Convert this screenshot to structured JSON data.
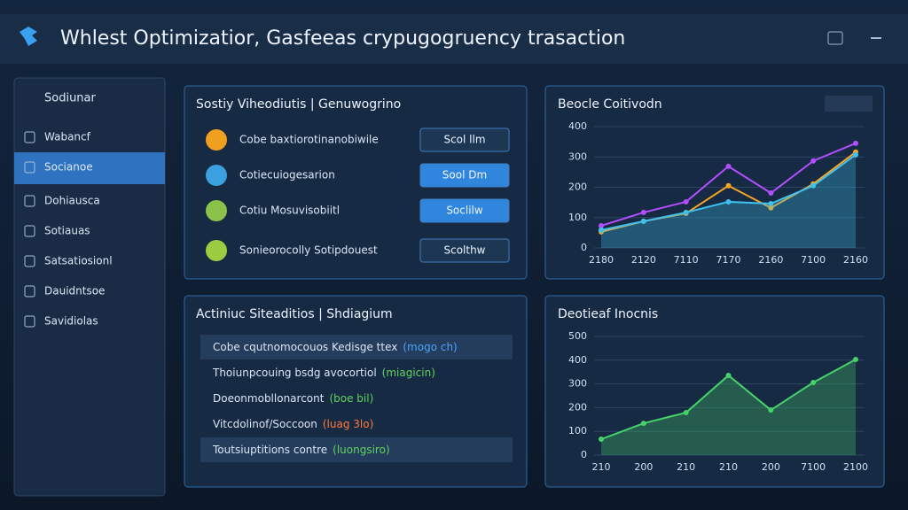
{
  "header": {
    "title": "Whlest Optimizatior, Gasfeeas crypugogruency trasaction"
  },
  "sidebar": {
    "title": "Sodiunar",
    "items": [
      "Wabancf",
      "Socianoe",
      "Dohiausca",
      "Sotiauas",
      "Satsatiosionl",
      "Dauidntsoe",
      "Savidiolas"
    ],
    "active": 1
  },
  "actions_panel": {
    "title": "Sostiy Viheodiutis | Genuwogrino",
    "rows": [
      {
        "label": "Cobe baxtiorotinanobiwile",
        "button": "Scol llm"
      },
      {
        "label": "Cotiecuiogesarion",
        "button": "Sool Dm"
      },
      {
        "label": "Cotiu Mosuvisobiitl",
        "button": "Soclilw"
      },
      {
        "label": "Sonieorocolly Sotipdouest",
        "button": "Scolthw"
      }
    ]
  },
  "activity_panel": {
    "title": "Actiniuc Siteaditios | Shdiagium",
    "items": [
      {
        "text": "Cobe cqutnomocouos Kedisge ttex",
        "tag": "(mogo ch)",
        "color": "#4aa3ff"
      },
      {
        "text": "Thoiunpcouing bsdg avocortiol",
        "tag": "(miagicin)",
        "color": "#5fd35f"
      },
      {
        "text": "Doeonmobllonarcont",
        "tag": "(boe bil)",
        "color": "#5fd35f"
      },
      {
        "text": "Vitcdolinof/Soccoon",
        "tag": "(luag 3lo)",
        "color": "#ff7a3a"
      },
      {
        "text": "Toutsiuptitions contre",
        "tag": "(luongsiro)",
        "color": "#5fd35f"
      }
    ]
  },
  "chart_data": [
    {
      "type": "line",
      "title": "Beocle Coitivodn",
      "categories": [
        "2180",
        "2120",
        "7110",
        "7170",
        "2160",
        "7100",
        "2160"
      ],
      "series": [
        {
          "color": "#b34dff",
          "values": [
            73,
            117,
            152,
            269,
            181,
            287,
            345
          ]
        },
        {
          "color": "#f5a623",
          "values": [
            53,
            88,
            114,
            205,
            132,
            211,
            316
          ]
        },
        {
          "color": "#3fc1f0",
          "values": [
            59,
            88,
            117,
            152,
            146,
            205,
            307
          ]
        }
      ],
      "ylim": [
        0,
        400
      ],
      "yticks": [
        0,
        100,
        200,
        300,
        400
      ],
      "grid": true
    },
    {
      "type": "area",
      "title": "Deotieaf Inocnis",
      "categories": [
        "210",
        "200",
        "210",
        "210",
        "200",
        "7100",
        "2100"
      ],
      "series": [
        {
          "color": "#46d16a",
          "values": [
            67,
            134,
            179,
            336,
            190,
            306,
            403
          ]
        }
      ],
      "ylim": [
        0,
        500
      ],
      "yticks": [
        0,
        100,
        200,
        300,
        400,
        500
      ],
      "grid": true
    }
  ]
}
